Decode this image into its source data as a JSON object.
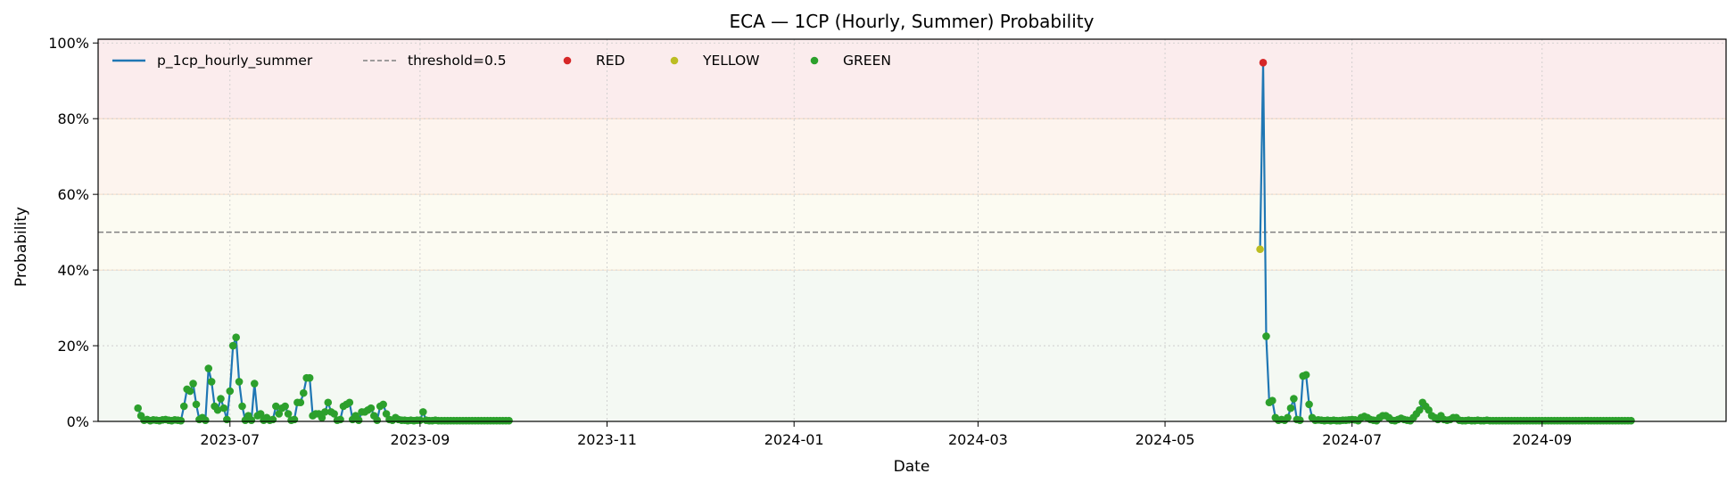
{
  "chart_data": {
    "type": "line",
    "title": "ECA — 1CP (Hourly, Summer) Probability",
    "xlabel": "Date",
    "ylabel": "Probability",
    "xlim": [
      "2023-05-19",
      "2024-10-31"
    ],
    "ylim": [
      0,
      1.01
    ],
    "x_ticks": [
      "2023-07",
      "2023-09",
      "2023-11",
      "2024-01",
      "2024-03",
      "2024-05",
      "2024-07",
      "2024-09"
    ],
    "x_tick_dates": [
      "2023-07-01",
      "2023-09-01",
      "2023-11-01",
      "2024-01-01",
      "2024-03-01",
      "2024-05-01",
      "2024-07-01",
      "2024-09-01"
    ],
    "y_ticks": [
      0,
      0.2,
      0.4,
      0.6,
      0.8,
      1.0
    ],
    "y_tick_labels": [
      "0%",
      "20%",
      "40%",
      "60%",
      "80%",
      "100%"
    ],
    "grid": true,
    "legend_placement": "top-left",
    "legend": [
      "p_1cp_hourly_summer",
      "threshold=0.5",
      "RED",
      "YELLOW",
      "GREEN"
    ],
    "colors": {
      "line": "#1f77b4",
      "threshold": "#808080",
      "RED": "#d62728",
      "YELLOW": "#bcbd22",
      "GREEN": "#2ca02c",
      "band_red": "#fbeced",
      "band_orange": "#fdf4ee",
      "band_yellow": "#fcfbf2",
      "band_green": "#f4f9f3"
    },
    "bands": [
      {
        "from": 0.0,
        "to": 0.4,
        "color": "band_green"
      },
      {
        "from": 0.4,
        "to": 0.6,
        "color": "band_yellow"
      },
      {
        "from": 0.6,
        "to": 0.8,
        "color": "band_orange"
      },
      {
        "from": 0.8,
        "to": 1.01,
        "color": "band_red"
      }
    ],
    "threshold": 0.5,
    "series": [
      {
        "name": "p_1cp_hourly_summer",
        "segments": [
          {
            "x": [
              "2023-06-01",
              "2023-06-02",
              "2023-06-03",
              "2023-06-04",
              "2023-06-05",
              "2023-06-06",
              "2023-06-07",
              "2023-06-08",
              "2023-06-09",
              "2023-06-10",
              "2023-06-11",
              "2023-06-12",
              "2023-06-13",
              "2023-06-14",
              "2023-06-15",
              "2023-06-16",
              "2023-06-17",
              "2023-06-18",
              "2023-06-19",
              "2023-06-20",
              "2023-06-21",
              "2023-06-22",
              "2023-06-23",
              "2023-06-24",
              "2023-06-25",
              "2023-06-26",
              "2023-06-27",
              "2023-06-28",
              "2023-06-29",
              "2023-06-30",
              "2023-07-01",
              "2023-07-02",
              "2023-07-03",
              "2023-07-04",
              "2023-07-05",
              "2023-07-06",
              "2023-07-07",
              "2023-07-08",
              "2023-07-09",
              "2023-07-10",
              "2023-07-11",
              "2023-07-12",
              "2023-07-13",
              "2023-07-14",
              "2023-07-15",
              "2023-07-16",
              "2023-07-17",
              "2023-07-18",
              "2023-07-19",
              "2023-07-20",
              "2023-07-21",
              "2023-07-22",
              "2023-07-23",
              "2023-07-24",
              "2023-07-25",
              "2023-07-26",
              "2023-07-27",
              "2023-07-28",
              "2023-07-29",
              "2023-07-30",
              "2023-07-31",
              "2023-08-01",
              "2023-08-02",
              "2023-08-03",
              "2023-08-04",
              "2023-08-05",
              "2023-08-06",
              "2023-08-07",
              "2023-08-08",
              "2023-08-09",
              "2023-08-10",
              "2023-08-11",
              "2023-08-12",
              "2023-08-13",
              "2023-08-14",
              "2023-08-15",
              "2023-08-16",
              "2023-08-17",
              "2023-08-18",
              "2023-08-19",
              "2023-08-20",
              "2023-08-21",
              "2023-08-22",
              "2023-08-23",
              "2023-08-24",
              "2023-08-25",
              "2023-08-26",
              "2023-08-27",
              "2023-08-28",
              "2023-08-29",
              "2023-08-30",
              "2023-08-31",
              "2023-09-01",
              "2023-09-02",
              "2023-09-03",
              "2023-09-04",
              "2023-09-05",
              "2023-09-06",
              "2023-09-07",
              "2023-09-08",
              "2023-09-09",
              "2023-09-10",
              "2023-09-11",
              "2023-09-12",
              "2023-09-13",
              "2023-09-14",
              "2023-09-15",
              "2023-09-16",
              "2023-09-17",
              "2023-09-18",
              "2023-09-19",
              "2023-09-20",
              "2023-09-21",
              "2023-09-22",
              "2023-09-23",
              "2023-09-24",
              "2023-09-25",
              "2023-09-26",
              "2023-09-27",
              "2023-09-28",
              "2023-09-29",
              "2023-09-30"
            ],
            "y": [
              0.035,
              0.015,
              0.003,
              0.005,
              0.002,
              0.004,
              0.003,
              0.002,
              0.004,
              0.005,
              0.003,
              0.002,
              0.004,
              0.003,
              0.002,
              0.04,
              0.085,
              0.08,
              0.1,
              0.045,
              0.005,
              0.01,
              0.003,
              0.14,
              0.105,
              0.04,
              0.03,
              0.06,
              0.035,
              0.005,
              0.08,
              0.2,
              0.222,
              0.105,
              0.04,
              0.003,
              0.015,
              0.003,
              0.1,
              0.015,
              0.02,
              0.003,
              0.01,
              0.003,
              0.005,
              0.04,
              0.02,
              0.035,
              0.04,
              0.02,
              0.003,
              0.005,
              0.05,
              0.05,
              0.075,
              0.115,
              0.115,
              0.015,
              0.02,
              0.02,
              0.01,
              0.025,
              0.05,
              0.025,
              0.02,
              0.003,
              0.005,
              0.04,
              0.045,
              0.05,
              0.005,
              0.015,
              0.003,
              0.025,
              0.025,
              0.03,
              0.035,
              0.015,
              0.003,
              0.04,
              0.045,
              0.02,
              0.005,
              0.003,
              0.01,
              0.005,
              0.003,
              0.003,
              0.002,
              0.003,
              0.002,
              0.003,
              0.003,
              0.025,
              0.003,
              0.002,
              0.002,
              0.003,
              0.002,
              0.002,
              0.002,
              0.002,
              0.002,
              0.002,
              0.002,
              0.002,
              0.002,
              0.002,
              0.002,
              0.002,
              0.002,
              0.002,
              0.002,
              0.002,
              0.002,
              0.002,
              0.002,
              0.002,
              0.002,
              0.002,
              0.002,
              0.002
            ]
          },
          {
            "x": [
              "2024-06-01",
              "2024-06-02",
              "2024-06-03",
              "2024-06-04",
              "2024-06-05",
              "2024-06-06",
              "2024-06-07",
              "2024-06-08",
              "2024-06-09",
              "2024-06-10",
              "2024-06-11",
              "2024-06-12",
              "2024-06-13",
              "2024-06-14",
              "2024-06-15",
              "2024-06-16",
              "2024-06-17",
              "2024-06-18",
              "2024-06-19",
              "2024-06-20",
              "2024-06-21",
              "2024-06-22",
              "2024-06-23",
              "2024-06-24",
              "2024-06-25",
              "2024-06-26",
              "2024-06-27",
              "2024-06-28",
              "2024-06-29",
              "2024-06-30",
              "2024-07-01",
              "2024-07-02",
              "2024-07-03",
              "2024-07-04",
              "2024-07-05",
              "2024-07-06",
              "2024-07-07",
              "2024-07-08",
              "2024-07-09",
              "2024-07-10",
              "2024-07-11",
              "2024-07-12",
              "2024-07-13",
              "2024-07-14",
              "2024-07-15",
              "2024-07-16",
              "2024-07-17",
              "2024-07-18",
              "2024-07-19",
              "2024-07-20",
              "2024-07-21",
              "2024-07-22",
              "2024-07-23",
              "2024-07-24",
              "2024-07-25",
              "2024-07-26",
              "2024-07-27",
              "2024-07-28",
              "2024-07-29",
              "2024-07-30",
              "2024-07-31",
              "2024-08-01",
              "2024-08-02",
              "2024-08-03",
              "2024-08-04",
              "2024-08-05",
              "2024-08-06",
              "2024-08-07",
              "2024-08-08",
              "2024-08-09",
              "2024-08-10",
              "2024-08-11",
              "2024-08-12",
              "2024-08-13",
              "2024-08-14",
              "2024-08-15",
              "2024-08-16",
              "2024-08-17",
              "2024-08-18",
              "2024-08-19",
              "2024-08-20",
              "2024-08-21",
              "2024-08-22",
              "2024-08-23",
              "2024-08-24",
              "2024-08-25",
              "2024-08-26",
              "2024-08-27",
              "2024-08-28",
              "2024-08-29",
              "2024-08-30",
              "2024-08-31",
              "2024-09-01",
              "2024-09-02",
              "2024-09-03",
              "2024-09-04",
              "2024-09-05",
              "2024-09-06",
              "2024-09-07",
              "2024-09-08",
              "2024-09-09",
              "2024-09-10",
              "2024-09-11",
              "2024-09-12",
              "2024-09-13",
              "2024-09-14",
              "2024-09-15",
              "2024-09-16",
              "2024-09-17",
              "2024-09-18",
              "2024-09-19",
              "2024-09-20",
              "2024-09-21",
              "2024-09-22",
              "2024-09-23",
              "2024-09-24",
              "2024-09-25",
              "2024-09-26",
              "2024-09-27",
              "2024-09-28",
              "2024-09-29",
              "2024-09-30"
            ],
            "y": [
              0.455,
              0.948,
              0.225,
              0.05,
              0.055,
              0.01,
              0.003,
              0.005,
              0.003,
              0.01,
              0.035,
              0.06,
              0.005,
              0.003,
              0.12,
              0.123,
              0.045,
              0.01,
              0.003,
              0.004,
              0.003,
              0.002,
              0.003,
              0.002,
              0.003,
              0.002,
              0.002,
              0.003,
              0.003,
              0.004,
              0.005,
              0.004,
              0.002,
              0.01,
              0.013,
              0.01,
              0.005,
              0.003,
              0.002,
              0.01,
              0.015,
              0.015,
              0.01,
              0.003,
              0.002,
              0.005,
              0.008,
              0.005,
              0.003,
              0.002,
              0.01,
              0.02,
              0.03,
              0.05,
              0.04,
              0.03,
              0.015,
              0.01,
              0.005,
              0.015,
              0.005,
              0.003,
              0.005,
              0.01,
              0.01,
              0.003,
              0.002,
              0.002,
              0.003,
              0.002,
              0.002,
              0.003,
              0.002,
              0.002,
              0.003,
              0.002,
              0.002,
              0.002,
              0.002,
              0.002,
              0.002,
              0.002,
              0.002,
              0.002,
              0.002,
              0.002,
              0.002,
              0.002,
              0.002,
              0.002,
              0.002,
              0.002,
              0.002,
              0.002,
              0.002,
              0.002,
              0.002,
              0.002,
              0.002,
              0.002,
              0.002,
              0.002,
              0.002,
              0.002,
              0.002,
              0.002,
              0.002,
              0.002,
              0.002,
              0.002,
              0.002,
              0.002,
              0.002,
              0.002,
              0.002,
              0.002,
              0.002,
              0.002,
              0.002,
              0.002,
              0.002,
              0.002
            ]
          }
        ]
      }
    ],
    "status_rule": {
      "RED": ">= 0.8",
      "YELLOW": "0.4 - 0.8",
      "GREEN": "< 0.4"
    }
  }
}
